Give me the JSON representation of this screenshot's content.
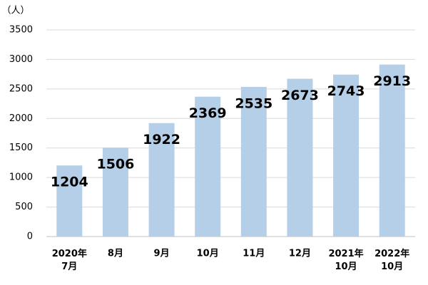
{
  "chart_data": {
    "type": "bar",
    "y_unit_label": "（人）",
    "categories": [
      "2020年\n7月",
      "8月",
      "9月",
      "10月",
      "11月",
      "12月",
      "2021年\n10月",
      "2022年\n10月"
    ],
    "values": [
      1204,
      1506,
      1922,
      2369,
      2535,
      2673,
      2743,
      2913
    ],
    "color": "#b4cfe7",
    "ylim": [
      0,
      3500
    ],
    "yticks": [
      0,
      500,
      1000,
      1500,
      2000,
      2500,
      3000,
      3500
    ],
    "grid": true
  }
}
